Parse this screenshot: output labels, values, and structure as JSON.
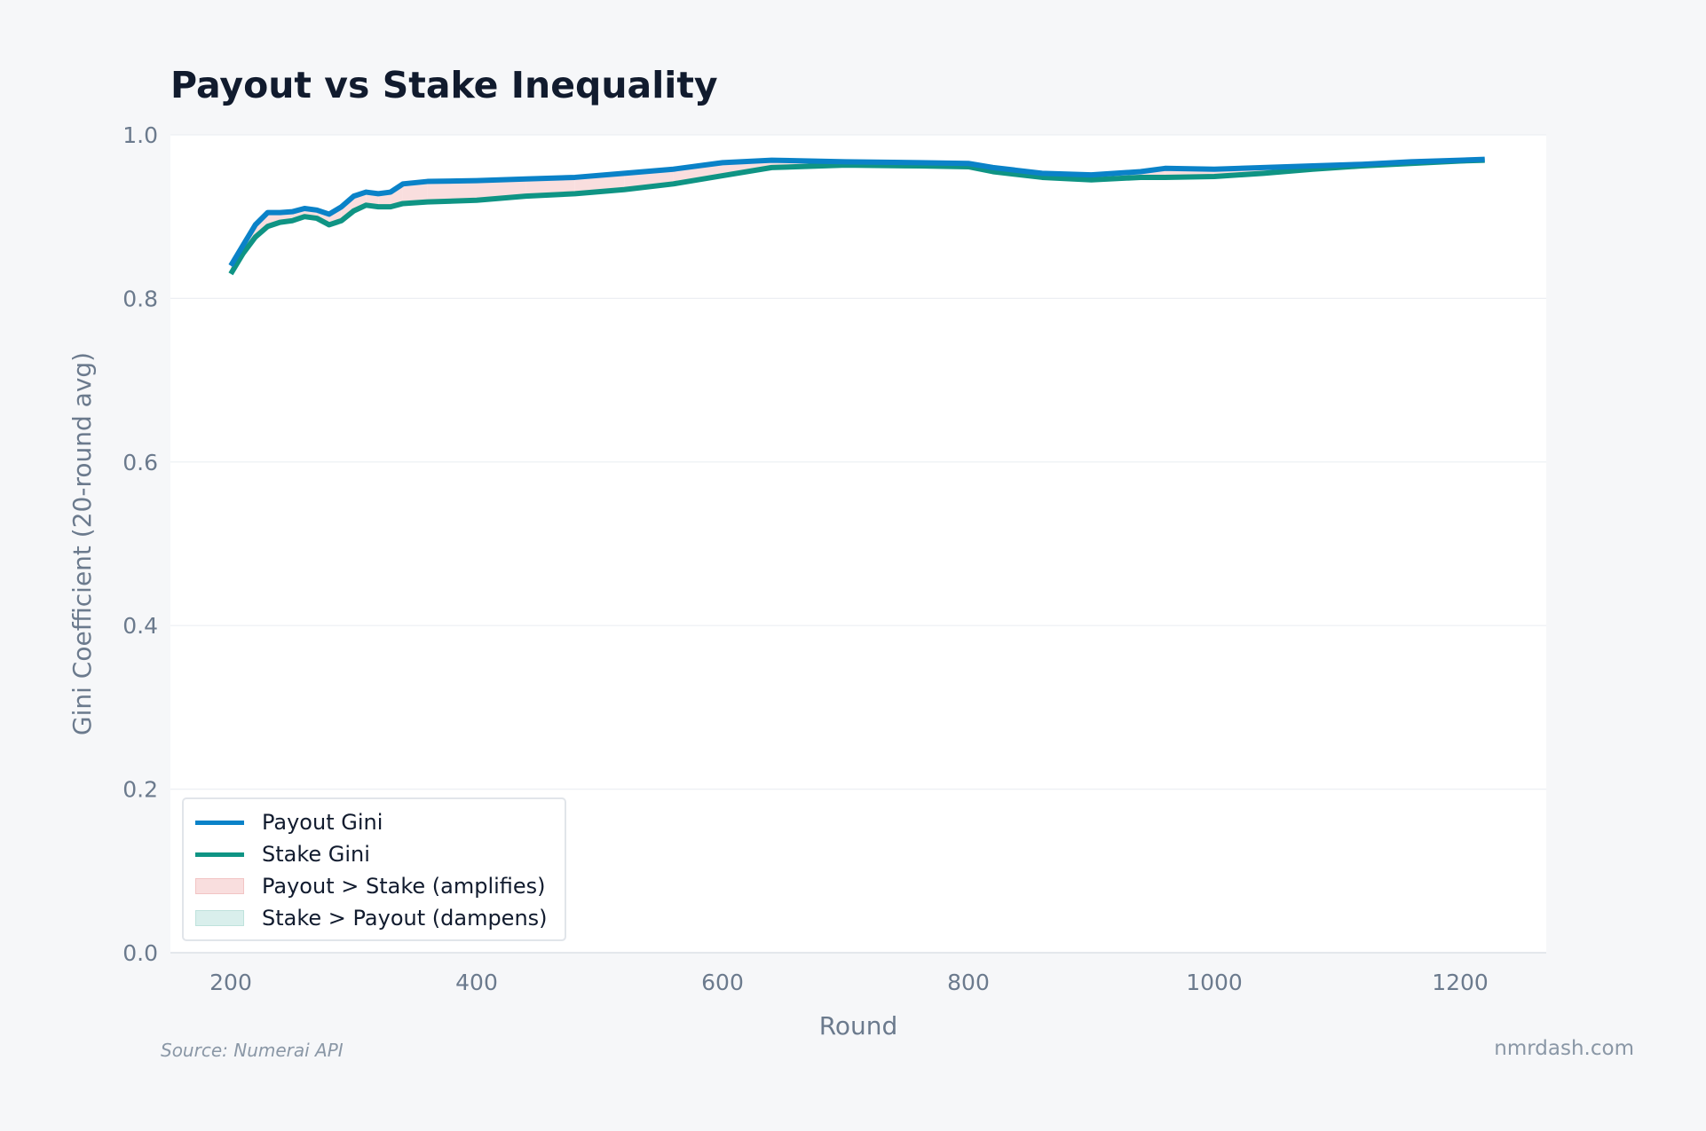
{
  "chart_data": {
    "type": "line",
    "title": "Payout vs Stake Inequality",
    "xlabel": "Round",
    "ylabel": "Gini Coefficient (20-round avg)",
    "xlim": [
      150,
      1270
    ],
    "ylim": [
      0.0,
      1.0
    ],
    "xticks": [
      200,
      400,
      600,
      800,
      1000,
      1200
    ],
    "yticks": [
      "0.0",
      "0.2",
      "0.4",
      "0.6",
      "0.8",
      "1.0"
    ],
    "grid": true,
    "legend_position": "bottom-left",
    "x": [
      200,
      210,
      220,
      230,
      240,
      250,
      260,
      270,
      280,
      290,
      300,
      310,
      320,
      330,
      340,
      360,
      400,
      440,
      480,
      520,
      560,
      600,
      640,
      700,
      760,
      800,
      820,
      860,
      900,
      940,
      960,
      1000,
      1040,
      1080,
      1120,
      1160,
      1200,
      1220
    ],
    "series": [
      {
        "name": "Payout Gini",
        "color": "#0a82c8",
        "values": [
          0.84,
          0.865,
          0.89,
          0.905,
          0.905,
          0.906,
          0.91,
          0.908,
          0.903,
          0.912,
          0.925,
          0.93,
          0.928,
          0.93,
          0.94,
          0.943,
          0.944,
          0.946,
          0.948,
          0.953,
          0.958,
          0.966,
          0.969,
          0.967,
          0.966,
          0.965,
          0.96,
          0.953,
          0.951,
          0.955,
          0.959,
          0.958,
          0.96,
          0.962,
          0.964,
          0.967,
          0.969,
          0.97
        ]
      },
      {
        "name": "Stake Gini",
        "color": "#0f9484",
        "values": [
          0.83,
          0.855,
          0.875,
          0.888,
          0.893,
          0.895,
          0.9,
          0.898,
          0.89,
          0.895,
          0.907,
          0.914,
          0.912,
          0.912,
          0.916,
          0.918,
          0.92,
          0.925,
          0.928,
          0.933,
          0.94,
          0.95,
          0.96,
          0.963,
          0.962,
          0.961,
          0.955,
          0.948,
          0.945,
          0.948,
          0.948,
          0.949,
          0.953,
          0.958,
          0.962,
          0.965,
          0.968,
          0.969
        ]
      }
    ],
    "fills": [
      {
        "name": "Payout > Stake (amplifies)",
        "color": "#f9dede"
      },
      {
        "name": "Stake > Payout (dampens)",
        "color": "#d9efec"
      }
    ]
  },
  "footer": {
    "source": "Source: Numerai API",
    "brand": "nmrdash.com"
  }
}
